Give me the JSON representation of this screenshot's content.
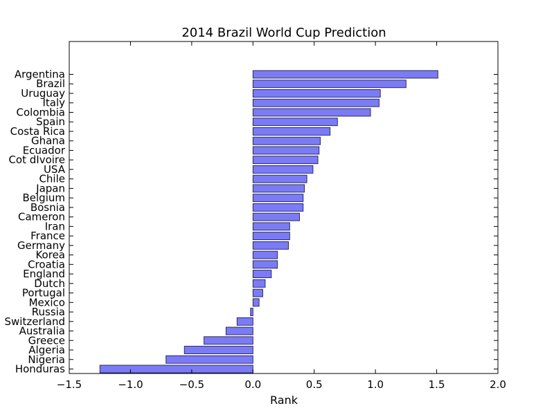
{
  "chart_data": {
    "type": "bar",
    "orientation": "horizontal",
    "title": "2014 Brazil World Cup Prediction",
    "xlabel": "Rank",
    "ylabel": "",
    "xlim": [
      -1.5,
      2.0
    ],
    "xticks": [
      -1.5,
      -1.0,
      -0.5,
      0.0,
      0.5,
      1.0,
      1.5,
      2.0
    ],
    "xtick_labels": [
      "−1.5",
      "−1.0",
      "−0.5",
      "0.0",
      "0.5",
      "1.0",
      "1.5",
      "2.0"
    ],
    "grid": false,
    "bar_color": "#7b7bf5",
    "categories": [
      "Argentina",
      "Brazil",
      "Uruguay",
      "Italy",
      "Colombia",
      "Spain",
      "Costa Rica",
      "Ghana",
      "Ecuador",
      "Cot dIvoire",
      "USA",
      "Chile",
      "Japan",
      "Belgium",
      "Bosnia",
      "Cameron",
      "Iran",
      "France",
      "Germany",
      "Korea",
      "Croatia",
      "England",
      "Dutch",
      "Portugal",
      "Mexico",
      "Russia",
      "Switzerland",
      "Australia",
      "Greece",
      "Algeria",
      "Nigeria",
      "Honduras"
    ],
    "values": [
      1.51,
      1.25,
      1.04,
      1.03,
      0.96,
      0.69,
      0.63,
      0.55,
      0.54,
      0.53,
      0.49,
      0.44,
      0.42,
      0.41,
      0.41,
      0.38,
      0.3,
      0.3,
      0.29,
      0.2,
      0.2,
      0.15,
      0.1,
      0.08,
      0.05,
      -0.02,
      -0.13,
      -0.22,
      -0.4,
      -0.56,
      -0.71,
      -1.25
    ]
  }
}
